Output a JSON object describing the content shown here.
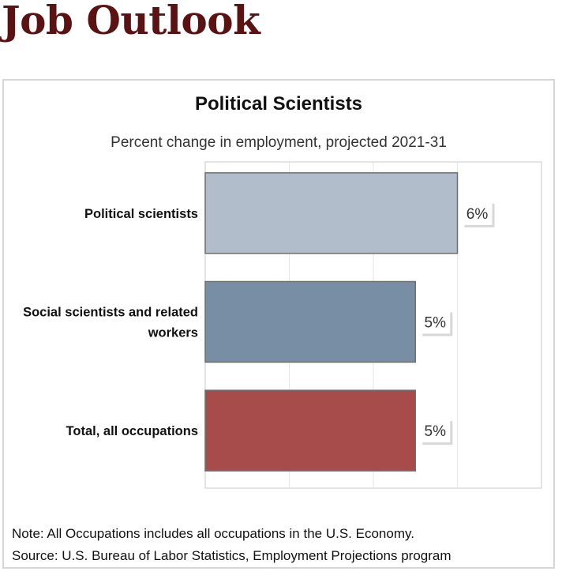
{
  "page": {
    "title": "Job Outlook"
  },
  "chart_data": {
    "type": "bar",
    "orientation": "horizontal",
    "title": "Political Scientists",
    "subtitle": "Percent change in employment, projected 2021-31",
    "categories": [
      "Political scientists",
      "Social scientists and related workers",
      "Total, all occupations"
    ],
    "category_lines": [
      [
        "Political scientists"
      ],
      [
        "Social scientists and related",
        "workers"
      ],
      [
        "Total, all occupations"
      ]
    ],
    "values": [
      6,
      5,
      5
    ],
    "value_labels": [
      "6%",
      "5%",
      "5%"
    ],
    "bar_colors": [
      "#b1bdca",
      "#788ea5",
      "#a74c4a"
    ],
    "xlim": [
      0,
      8
    ],
    "grid": true
  },
  "notes": {
    "note": "Note: All Occupations includes all occupations in the U.S. Economy.",
    "source": "Source: U.S. Bureau of Labor Statistics, Employment Projections program"
  }
}
